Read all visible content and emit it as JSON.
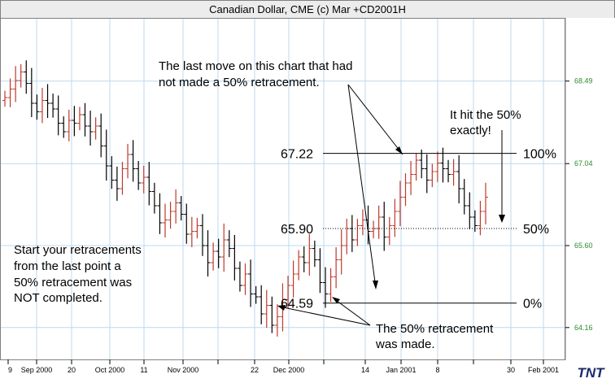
{
  "title": "Canadian Dollar, CME (c) Mar +CD2001H",
  "logo": "TNT",
  "colors": {
    "up": "#c0392b",
    "down": "#000000",
    "grid": "#bcd8f0",
    "ytick": "#2e8b2e",
    "frame": "#808080"
  },
  "annotations": {
    "last_move": [
      "The last move on this chart that had",
      "not made a 50% retracement."
    ],
    "hit": [
      "It hit the 50%",
      "exactly!"
    ],
    "start": [
      "Start your retracements",
      "from the last point a",
      "50% retracement was",
      "NOT completed."
    ],
    "made": [
      "The 50% retracement",
      "was made."
    ]
  },
  "chart_data": {
    "type": "ohlc-bar",
    "title": "Canadian Dollar, CME (c) Mar +CD2001H",
    "y_ticks": [
      64.16,
      65.6,
      67.04,
      68.49
    ],
    "ylim": [
      63.6,
      69.6
    ],
    "x_tick_labels": [
      "9",
      "Sep 2000",
      "20",
      "Oct 2000",
      "11",
      "Nov 2000",
      "22",
      "Dec 2000",
      "14",
      "Jan 2001",
      "8",
      "30",
      "Feb 2001"
    ],
    "levels": [
      {
        "price": 67.22,
        "price_label": "67.22",
        "pct_label": "100%"
      },
      {
        "price": 65.9,
        "price_label": "65.90",
        "pct_label": "50%"
      },
      {
        "price": 64.59,
        "price_label": "64.59",
        "pct_label": "0%"
      }
    ],
    "bars_close": [
      68.2,
      68.35,
      68.5,
      68.65,
      68.45,
      68.1,
      67.95,
      68.15,
      68.1,
      68.0,
      67.75,
      67.6,
      67.8,
      67.75,
      67.9,
      67.7,
      67.6,
      67.7,
      67.35,
      67.0,
      66.75,
      66.6,
      66.95,
      67.2,
      66.95,
      66.7,
      66.8,
      66.55,
      66.3,
      66.0,
      66.05,
      66.2,
      66.35,
      66.15,
      65.8,
      65.85,
      65.95,
      65.6,
      65.3,
      65.5,
      65.4,
      65.7,
      65.55,
      65.2,
      64.9,
      65.1,
      64.75,
      64.7,
      64.4,
      64.55,
      64.2,
      64.35,
      64.65,
      64.9,
      65.1,
      65.4,
      65.3,
      65.55,
      65.35,
      64.95,
      64.75,
      65.05,
      65.35,
      65.6,
      65.9,
      65.7,
      65.95,
      66.05,
      65.85,
      65.9,
      66.1,
      65.75,
      65.95,
      66.2,
      66.45,
      66.7,
      66.85,
      67.1,
      66.95,
      66.75,
      66.9,
      67.05,
      66.95,
      66.85,
      66.9,
      66.6,
      66.3,
      66.1,
      65.95,
      66.2,
      66.45
    ]
  }
}
